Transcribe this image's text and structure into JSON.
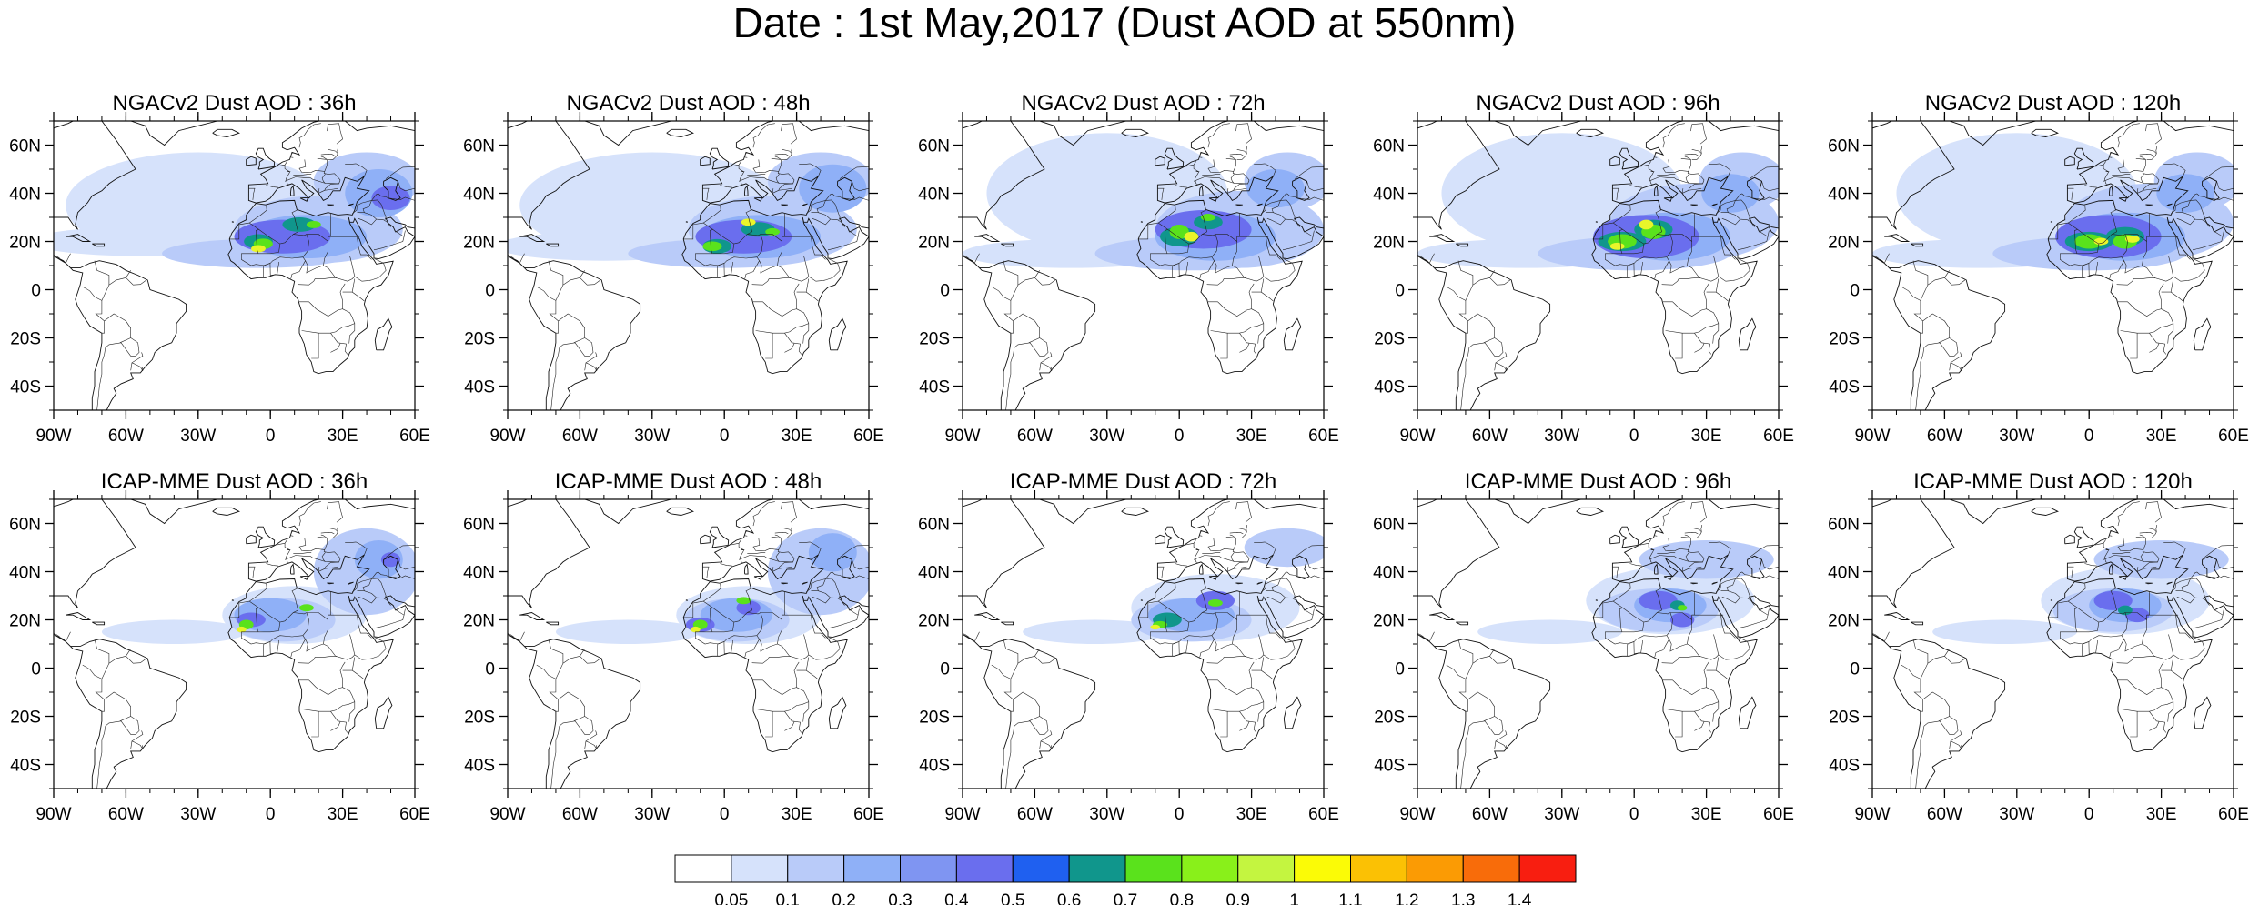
{
  "title": "Date : 1st May,2017 (Dust AOD at 550nm)",
  "map_extent": {
    "lon_min": -90,
    "lon_max": 60,
    "lat_min": -50,
    "lat_max": 70
  },
  "lon_ticks": [
    {
      "value": -90,
      "label": "90W"
    },
    {
      "value": -60,
      "label": "60W"
    },
    {
      "value": -30,
      "label": "30W"
    },
    {
      "value": 0,
      "label": "0"
    },
    {
      "value": 30,
      "label": "30E"
    },
    {
      "value": 60,
      "label": "60E"
    }
  ],
  "lat_ticks": [
    {
      "value": 60,
      "label": "60N"
    },
    {
      "value": 40,
      "label": "40N"
    },
    {
      "value": 20,
      "label": "20N"
    },
    {
      "value": 0,
      "label": "0"
    },
    {
      "value": -20,
      "label": "20S"
    },
    {
      "value": -40,
      "label": "40S"
    }
  ],
  "panels": [
    {
      "title": "NGACv2 Dust AOD : 36h",
      "model": "NGACv2",
      "lead": "36h"
    },
    {
      "title": "NGACv2 Dust AOD : 48h",
      "model": "NGACv2",
      "lead": "48h"
    },
    {
      "title": "NGACv2 Dust AOD : 72h",
      "model": "NGACv2",
      "lead": "72h"
    },
    {
      "title": "NGACv2 Dust AOD : 96h",
      "model": "NGACv2",
      "lead": "96h"
    },
    {
      "title": "NGACv2 Dust AOD : 120h",
      "model": "NGACv2",
      "lead": "120h"
    },
    {
      "title": "ICAP-MME Dust AOD : 36h",
      "model": "ICAP-MME",
      "lead": "36h"
    },
    {
      "title": "ICAP-MME Dust AOD : 48h",
      "model": "ICAP-MME",
      "lead": "48h"
    },
    {
      "title": "ICAP-MME Dust AOD : 72h",
      "model": "ICAP-MME",
      "lead": "72h"
    },
    {
      "title": "ICAP-MME Dust AOD : 96h",
      "model": "ICAP-MME",
      "lead": "96h"
    },
    {
      "title": "ICAP-MME Dust AOD : 120h",
      "model": "ICAP-MME",
      "lead": "120h"
    }
  ],
  "colorbar": {
    "levels": [
      "0.05",
      "0.1",
      "0.2",
      "0.3",
      "0.4",
      "0.5",
      "0.6",
      "0.7",
      "0.8",
      "0.9",
      "1",
      "1.1",
      "1.2",
      "1.3",
      "1.4"
    ],
    "colors": [
      "#ffffff",
      "#d6e2fb",
      "#b9cbf9",
      "#8fb0f7",
      "#7f95f2",
      "#6a6eee",
      "#1f60f0",
      "#10968c",
      "#5ae21c",
      "#89f01a",
      "#c4f540",
      "#fbfb06",
      "#fbc104",
      "#fb9b04",
      "#f86c0a",
      "#f81e10"
    ]
  },
  "plume_colors": {
    "light": "#d6e2fb",
    "mid": "#b9cbf9",
    "med": "#8fb0f7",
    "strong": "#6a6eee",
    "teal": "#10968c",
    "green": "#5ae21c",
    "yellow": "#e9f52a"
  }
}
